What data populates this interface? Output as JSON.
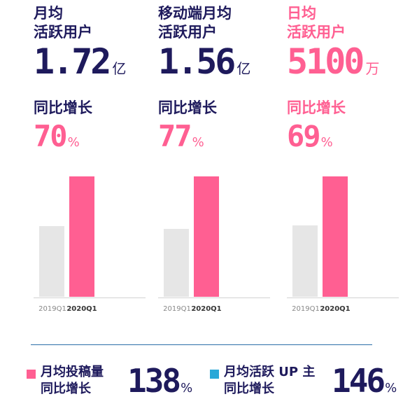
{
  "chart_data": [
    {
      "type": "bar",
      "title_lines": [
        "月均",
        "活跃用户"
      ],
      "value": "1.72",
      "unit": "亿",
      "growth_label": "同比增长",
      "growth_value": "70",
      "growth_unit": "%",
      "categories": [
        "2019Q1",
        "2020Q1"
      ],
      "values": [
        1.01,
        1.72
      ],
      "ylim": [
        0,
        1.72
      ]
    },
    {
      "type": "bar",
      "title_lines": [
        "移动端月均",
        "活跃用户"
      ],
      "value": "1.56",
      "unit": "亿",
      "growth_label": "同比增长",
      "growth_value": "77",
      "growth_unit": "%",
      "categories": [
        "2019Q1",
        "2020Q1"
      ],
      "values": [
        0.88,
        1.56
      ],
      "ylim": [
        0,
        1.56
      ]
    },
    {
      "type": "bar",
      "title_lines": [
        "日均",
        "活跃用户"
      ],
      "value": "5100",
      "unit": "万",
      "growth_label": "同比增长",
      "growth_value": "69",
      "growth_unit": "%",
      "categories": [
        "2019Q1",
        "2020Q1"
      ],
      "values": [
        3018,
        5100
      ],
      "ylim": [
        0,
        5100
      ]
    }
  ],
  "colors": {
    "navy": "#1e1a5c",
    "pink": "#ff5f92",
    "grey_bar": "#e6e6e6",
    "blue": "#29a8d8"
  },
  "bottom": [
    {
      "icon": "pink-square-icon",
      "label_lines": [
        "月均投稿量",
        "同比增长"
      ],
      "value": "138",
      "unit": "%"
    },
    {
      "icon": "blue-square-icon",
      "label_lines": [
        "月均活跃 UP 主",
        "同比增长"
      ],
      "value": "146",
      "unit": "%"
    }
  ]
}
